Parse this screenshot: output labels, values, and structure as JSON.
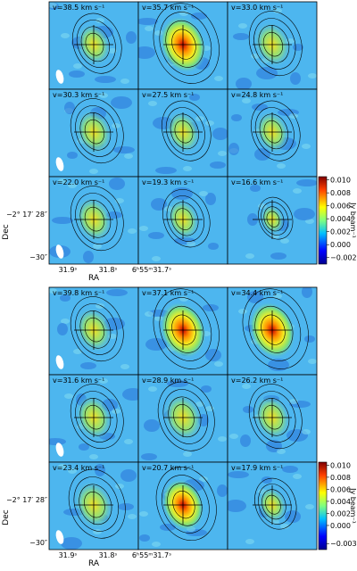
{
  "figures": [
    {
      "velocity_labels": [
        "v=38.5 km s⁻¹",
        "v=35.7 km s⁻¹",
        "v=33.0 km s⁻¹",
        "v=30.3 km s⁻¹",
        "v=27.5 km s⁻¹",
        "v=24.8 km s⁻¹",
        "v=22.0 km s⁻¹",
        "v=19.3 km s⁻¹",
        "v=16.6 km s⁻¹"
      ],
      "colorbar": {
        "label": "Jy beam⁻¹",
        "lim": [
          -0.003,
          0.0105
        ],
        "ticks": [
          {
            "value": 0.01,
            "label": "0.010"
          },
          {
            "value": 0.008,
            "label": "0.008"
          },
          {
            "value": 0.006,
            "label": "0.006"
          },
          {
            "value": 0.004,
            "label": "0.004"
          },
          {
            "value": 0.002,
            "label": "0.002"
          },
          {
            "value": 0,
            "label": "0.000"
          },
          {
            "value": -0.002,
            "label": "−0.002"
          }
        ]
      },
      "y_axis": {
        "label": "Dec",
        "ticks": [
          "−2° 17′ 28″",
          "−30″"
        ]
      },
      "x_axis": {
        "label": "RA",
        "ticks": [
          "31.9ˢ",
          "31.8ˢ",
          "6ʰ55ᵐ31.7ˢ"
        ]
      }
    },
    {
      "velocity_labels": [
        "v=39.8 km s⁻¹",
        "v=37.1 km s⁻¹",
        "v=34.4 km s⁻¹",
        "v=31.6 km s⁻¹",
        "v=28.9 km s⁻¹",
        "v=26.2 km s⁻¹",
        "v=23.4 km s⁻¹",
        "v=20.7 km s⁻¹",
        "v=17.9 km s⁻¹"
      ],
      "colorbar": {
        "label": "Jy beam⁻¹",
        "lim": [
          -0.004,
          0.0105
        ],
        "ticks": [
          {
            "value": 0.01,
            "label": "0.010"
          },
          {
            "value": 0.008,
            "label": "0.008"
          },
          {
            "value": 0.006,
            "label": "0.006"
          },
          {
            "value": 0.004,
            "label": "0.004"
          },
          {
            "value": 0.002,
            "label": "0.002"
          },
          {
            "value": 0,
            "label": "0.000"
          },
          {
            "value": -0.003,
            "label": "−0.003"
          }
        ]
      },
      "y_axis": {
        "label": "Dec",
        "ticks": [
          "−2° 17′ 28″",
          "−30″"
        ]
      },
      "x_axis": {
        "label": "RA",
        "ticks": [
          "31.9ˢ",
          "31.8ˢ",
          "6ʰ55ᵐ31.7ˢ"
        ]
      }
    }
  ]
}
